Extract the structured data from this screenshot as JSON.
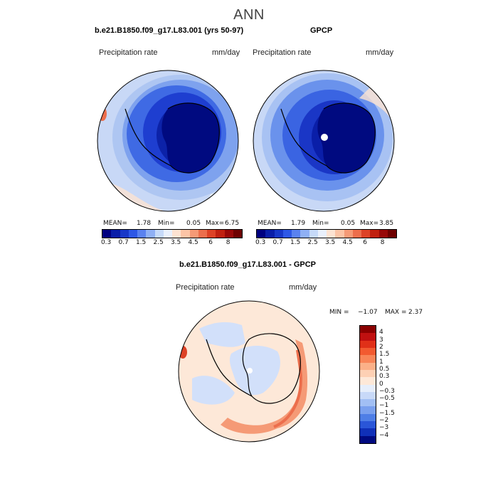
{
  "figure": {
    "title": "ANN"
  },
  "panel_model": {
    "title": "b.e21.B1850.f09_g17.L83.001 (yrs 50-97)",
    "left_label": "Precipitation rate",
    "right_label": "mm/day",
    "stats": {
      "mean_label": "MEAN=",
      "mean": "1.78",
      "min_label": "Min=",
      "min": "0.05",
      "max_label": "Max=",
      "max": "6.75"
    }
  },
  "panel_obs": {
    "title": "GPCP",
    "left_label": "Precipitation rate",
    "right_label": "mm/day",
    "stats": {
      "mean_label": "MEAN=",
      "mean": "1.79",
      "min_label": "Min=",
      "min": "0.05",
      "max_label": "Max=",
      "max": "3.85"
    }
  },
  "panel_diff": {
    "title": "b.e21.B1850.f09_g17.L83.001 - GPCP",
    "left_label": "Precipitation rate",
    "right_label": "mm/day",
    "minmax": {
      "min_label": "MIN =",
      "min": "−1.07",
      "max_label": "MAX =",
      "max": "2.37"
    }
  },
  "colorbar_abs": {
    "colors": [
      "#000080",
      "#0a1ea8",
      "#1838c8",
      "#2e58e6",
      "#5a82f0",
      "#8fb0f5",
      "#c6daf9",
      "#e9f0fc",
      "#fde3d2",
      "#fcc4a6",
      "#f59a76",
      "#ec6e4c",
      "#dd4226",
      "#c02010",
      "#980808",
      "#6e0000"
    ],
    "ticks": [
      "0.3",
      "0.7",
      "1.5",
      "2.5",
      "3.5",
      "4.5",
      "6",
      "8"
    ]
  },
  "colorbar_diff": {
    "colors": [
      "#8b0000",
      "#c01010",
      "#e03018",
      "#f25a30",
      "#f88558",
      "#fbb088",
      "#fdd0b4",
      "#fde8d8",
      "#e6eefb",
      "#c8d9f8",
      "#a2bff4",
      "#7aa0ee",
      "#4e7ee6",
      "#2a56d8",
      "#1030b8",
      "#000a80"
    ],
    "ticks": [
      "4",
      "3",
      "2",
      "1.5",
      "1",
      "0.5",
      "0.3",
      "0",
      "−0.3",
      "−0.5",
      "−1",
      "−1.5",
      "−2",
      "−3",
      "−4"
    ]
  },
  "colors": {
    "ocean_light": "#c8d8f6",
    "ocean_mid": "#9db9f0",
    "band_dark": "#3060e0",
    "antarctic": "#000a80",
    "diff_bg": "#fde8d8",
    "diff_blue": "#d2e0fa",
    "diff_red": "#f27a52"
  }
}
